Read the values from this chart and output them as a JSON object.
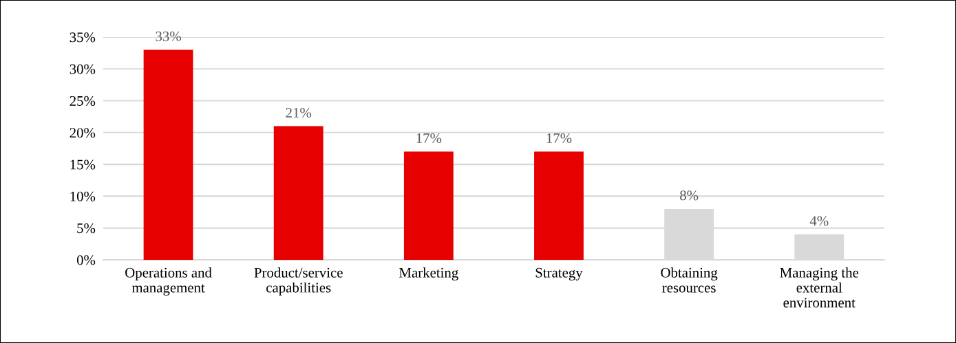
{
  "chart_data": {
    "type": "bar",
    "categories": [
      "Operations and\nmanagement",
      "Product/service\ncapabilities",
      "Marketing",
      "Strategy",
      "Obtaining\nresources",
      "Managing the\nexternal\nenvironment"
    ],
    "values": [
      33,
      21,
      17,
      17,
      8,
      4
    ],
    "colors": [
      "#e60000",
      "#e60000",
      "#e60000",
      "#e60000",
      "#d9d9d9",
      "#d9d9d9"
    ],
    "value_labels": [
      "33%",
      "21%",
      "17%",
      "17%",
      "8%",
      "4%"
    ],
    "ylim": [
      0,
      35
    ],
    "yticks": [
      {
        "value": 0,
        "label": "0%"
      },
      {
        "value": 5,
        "label": "5%"
      },
      {
        "value": 10,
        "label": "10%"
      },
      {
        "value": 15,
        "label": "15%"
      },
      {
        "value": 20,
        "label": "20%"
      },
      {
        "value": 25,
        "label": "25%"
      },
      {
        "value": 30,
        "label": "30%"
      },
      {
        "value": 35,
        "label": "35%"
      }
    ],
    "grid": "y",
    "legend": false
  }
}
